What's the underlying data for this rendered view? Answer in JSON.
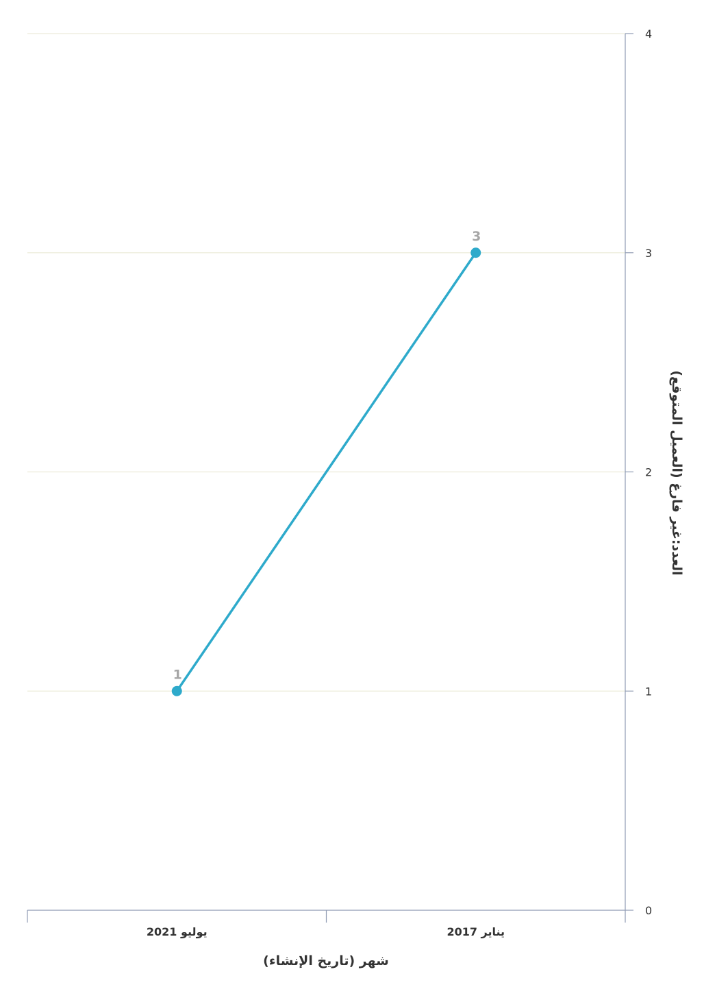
{
  "chart_data": {
    "type": "line",
    "direction": "rtl",
    "categories": [
      "يناير 2017",
      "يوليو 2021"
    ],
    "series": [
      {
        "values": [
          3,
          1
        ]
      }
    ],
    "xlabel": "شهر (تاريخ الإنشاء)",
    "ylabel": "العدد:غير فارغ (العميل المتوقع)",
    "ylim": [
      0,
      4
    ],
    "yticks": [
      "0",
      "1",
      "2",
      "3",
      "4"
    ],
    "y_axis_side": "right",
    "grid": true,
    "data_labels": true,
    "colors": {
      "line": "#2eaacb",
      "grid": "#ecebd9",
      "axis": "#8f9bb3",
      "data_label": "#a6a6a6"
    }
  }
}
